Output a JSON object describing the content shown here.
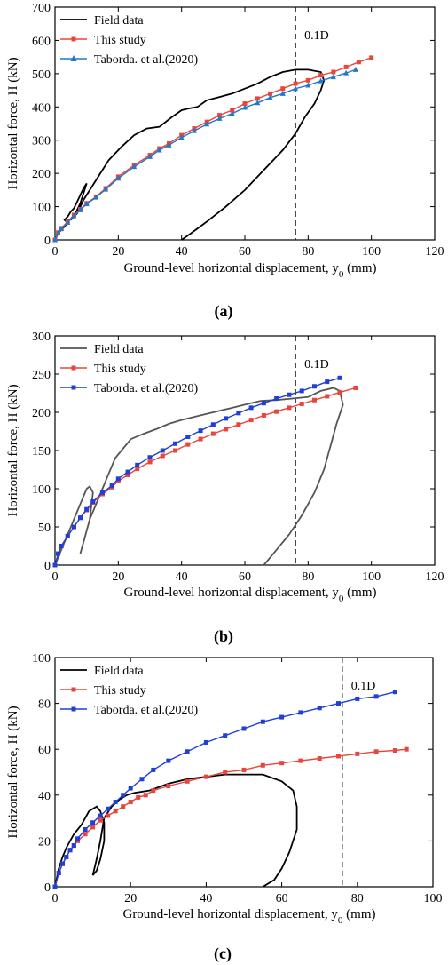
{
  "chart_data": [
    {
      "type": "line",
      "panel_label": "(a)",
      "xlabel": "Ground-level horizontal displacement, y",
      "xlabel_sub": "0",
      "xlabel_unit": " (mm)",
      "ylabel": "Horizontal force, H (kN)",
      "xlim": [
        0,
        120
      ],
      "ylim": [
        0,
        700
      ],
      "xticks": [
        0,
        20,
        40,
        60,
        80,
        100,
        120
      ],
      "yticks": [
        0,
        100,
        200,
        300,
        400,
        500,
        600,
        700
      ],
      "ref_line": {
        "x": 76,
        "label": "0.1D"
      },
      "legend_position": "top-left",
      "series": [
        {
          "name": "Field data",
          "color": "#000000",
          "marker": "none",
          "x": [
            0,
            1,
            2,
            3,
            4,
            3,
            4,
            5,
            6,
            7,
            8,
            9,
            10,
            9,
            8,
            7,
            6,
            5,
            7,
            9,
            11,
            14,
            17,
            21,
            25,
            29,
            33,
            37,
            40,
            42,
            45,
            48,
            52,
            56,
            60,
            64,
            68,
            72,
            76,
            80,
            84,
            85,
            84,
            82,
            79,
            76,
            72,
            66,
            60,
            54,
            48,
            43,
            40
          ],
          "y": [
            0,
            20,
            30,
            40,
            52,
            60,
            70,
            85,
            95,
            115,
            135,
            155,
            170,
            140,
            110,
            90,
            70,
            60,
            80,
            120,
            150,
            195,
            240,
            280,
            315,
            335,
            340,
            370,
            390,
            395,
            400,
            420,
            430,
            440,
            455,
            470,
            490,
            505,
            512,
            512,
            505,
            480,
            450,
            410,
            370,
            320,
            270,
            210,
            150,
            100,
            55,
            20,
            0
          ]
        },
        {
          "name": "This study",
          "color": "#e8453c",
          "marker": "square",
          "x": [
            0,
            1,
            2,
            4,
            6,
            8,
            10,
            13,
            16,
            20,
            25,
            30,
            33,
            36,
            40,
            44,
            48,
            52,
            56,
            60,
            64,
            68,
            72,
            76,
            80,
            84,
            88,
            92,
            96,
            100
          ],
          "y": [
            0,
            22,
            35,
            55,
            75,
            92,
            110,
            130,
            155,
            190,
            225,
            255,
            275,
            290,
            315,
            335,
            355,
            375,
            390,
            410,
            425,
            440,
            455,
            470,
            480,
            495,
            505,
            520,
            535,
            548
          ]
        },
        {
          "name": "Taborda. et al.(2020)",
          "color": "#1f78c8",
          "marker": "triangle",
          "x": [
            0,
            1,
            2,
            4,
            6,
            8,
            10,
            13,
            16,
            20,
            25,
            30,
            33,
            36,
            40,
            44,
            48,
            52,
            56,
            60,
            64,
            68,
            72,
            76,
            80,
            84,
            88,
            92,
            95
          ],
          "y": [
            0,
            20,
            33,
            52,
            72,
            90,
            108,
            128,
            152,
            185,
            220,
            250,
            270,
            285,
            308,
            328,
            348,
            365,
            380,
            398,
            412,
            428,
            440,
            455,
            465,
            478,
            490,
            502,
            512
          ]
        }
      ]
    },
    {
      "type": "line",
      "panel_label": "(b)",
      "xlabel": "Ground-level horizontal displacement, y",
      "xlabel_sub": "0",
      "xlabel_unit": " (mm)",
      "ylabel": "Horizontal force, H (kN)",
      "xlim": [
        0,
        120
      ],
      "ylim": [
        0,
        300
      ],
      "xticks": [
        0,
        20,
        40,
        60,
        80,
        100,
        120
      ],
      "yticks": [
        0,
        50,
        100,
        150,
        200,
        250,
        300
      ],
      "ref_line": {
        "x": 76,
        "label": "0.1D"
      },
      "legend_position": "top-left",
      "series": [
        {
          "name": "Field data",
          "color": "#555555",
          "marker": "none",
          "x": [
            0,
            2,
            4,
            6,
            8,
            10,
            11,
            12,
            11,
            9,
            8,
            9,
            11,
            13,
            15,
            17,
            19,
            21,
            24,
            28,
            32,
            36,
            40,
            45,
            50,
            55,
            60,
            65,
            70,
            75,
            80,
            84,
            88,
            90,
            91,
            89,
            87,
            85,
            82,
            78,
            74,
            70,
            67,
            66
          ],
          "y": [
            0,
            20,
            40,
            60,
            80,
            100,
            103,
            95,
            60,
            30,
            15,
            30,
            60,
            80,
            100,
            120,
            140,
            150,
            165,
            172,
            178,
            185,
            190,
            195,
            200,
            205,
            210,
            215,
            216,
            218,
            220,
            228,
            232,
            228,
            210,
            185,
            155,
            125,
            95,
            65,
            40,
            20,
            5,
            0
          ]
        },
        {
          "name": "This study",
          "color": "#e8453c",
          "marker": "square",
          "x": [
            0,
            1,
            2,
            4,
            6,
            8,
            10,
            12,
            15,
            18,
            20,
            23,
            26,
            30,
            34,
            38,
            42,
            46,
            50,
            54,
            58,
            62,
            66,
            70,
            74,
            78,
            82,
            86,
            90,
            95
          ],
          "y": [
            0,
            15,
            25,
            38,
            50,
            62,
            72,
            82,
            93,
            102,
            110,
            118,
            126,
            135,
            143,
            150,
            158,
            165,
            172,
            178,
            184,
            190,
            196,
            201,
            206,
            211,
            216,
            221,
            226,
            232
          ]
        },
        {
          "name": "Taborda. et al.(2020)",
          "color": "#1f3fd6",
          "marker": "square",
          "x": [
            0,
            1,
            2,
            4,
            6,
            8,
            10,
            12,
            15,
            18,
            20,
            23,
            26,
            30,
            34,
            38,
            42,
            46,
            50,
            54,
            58,
            62,
            66,
            70,
            74,
            78,
            82,
            86,
            90
          ],
          "y": [
            0,
            15,
            25,
            38,
            50,
            62,
            73,
            83,
            95,
            104,
            113,
            122,
            131,
            141,
            150,
            159,
            168,
            176,
            184,
            192,
            199,
            206,
            212,
            218,
            223,
            228,
            234,
            240,
            245
          ]
        }
      ]
    },
    {
      "type": "line",
      "panel_label": "(c)",
      "xlabel": "Ground-level horizontal displacement, y",
      "xlabel_sub": "0",
      "xlabel_unit": " (mm)",
      "ylabel": "Horizontal force, H (kN)",
      "xlim": [
        0,
        100
      ],
      "ylim": [
        0,
        100
      ],
      "xticks": [
        0,
        20,
        40,
        60,
        80,
        100
      ],
      "yticks": [
        0,
        20,
        40,
        60,
        80,
        100
      ],
      "ref_line": {
        "x": 76,
        "label": "0.1D"
      },
      "legend_position": "top-left",
      "series": [
        {
          "name": "Field data",
          "color": "#000000",
          "marker": "none",
          "x": [
            0,
            1,
            2,
            3,
            4,
            5,
            6,
            7,
            8,
            9,
            10,
            11,
            12,
            13,
            13,
            12,
            11,
            10,
            11,
            12,
            13,
            15,
            17,
            19,
            21,
            25,
            30,
            35,
            40,
            45,
            50,
            55,
            60,
            63,
            64,
            64,
            62,
            60,
            58,
            55
          ],
          "y": [
            0,
            8,
            13,
            17,
            20,
            23,
            25,
            27,
            30,
            33,
            34,
            35,
            33,
            28,
            20,
            12,
            7,
            5,
            12,
            20,
            30,
            35,
            38,
            40,
            41,
            42,
            45,
            47,
            48,
            49,
            49,
            49,
            46,
            42,
            35,
            25,
            15,
            8,
            3,
            0
          ]
        },
        {
          "name": "This study",
          "color": "#e8453c",
          "marker": "square",
          "x": [
            0,
            1,
            2,
            3,
            4,
            5,
            6,
            8,
            10,
            12,
            14,
            16,
            18,
            20,
            22,
            24,
            26,
            30,
            35,
            40,
            45,
            50,
            55,
            60,
            65,
            70,
            75,
            80,
            85,
            90,
            93
          ],
          "y": [
            0,
            6,
            10,
            13,
            16,
            18,
            20,
            23,
            26,
            29,
            31,
            33,
            35,
            37,
            39,
            40,
            42,
            44,
            46,
            48,
            50,
            51,
            53,
            54,
            55,
            56,
            57,
            58,
            59,
            59.5,
            60
          ]
        },
        {
          "name": "Taborda. et al.(2020)",
          "color": "#1f3fd6",
          "marker": "square",
          "x": [
            0,
            1,
            2,
            3,
            4,
            5,
            6,
            8,
            10,
            12,
            14,
            16,
            18,
            20,
            23,
            26,
            30,
            35,
            40,
            45,
            50,
            55,
            60,
            65,
            70,
            75,
            80,
            85,
            90
          ],
          "y": [
            0,
            6,
            10,
            13,
            16,
            18,
            21,
            25,
            28,
            31,
            34,
            37,
            40,
            43,
            47,
            51,
            55,
            59,
            63,
            66,
            69,
            72,
            74,
            76,
            78,
            80,
            82,
            83,
            85
          ]
        }
      ]
    }
  ]
}
